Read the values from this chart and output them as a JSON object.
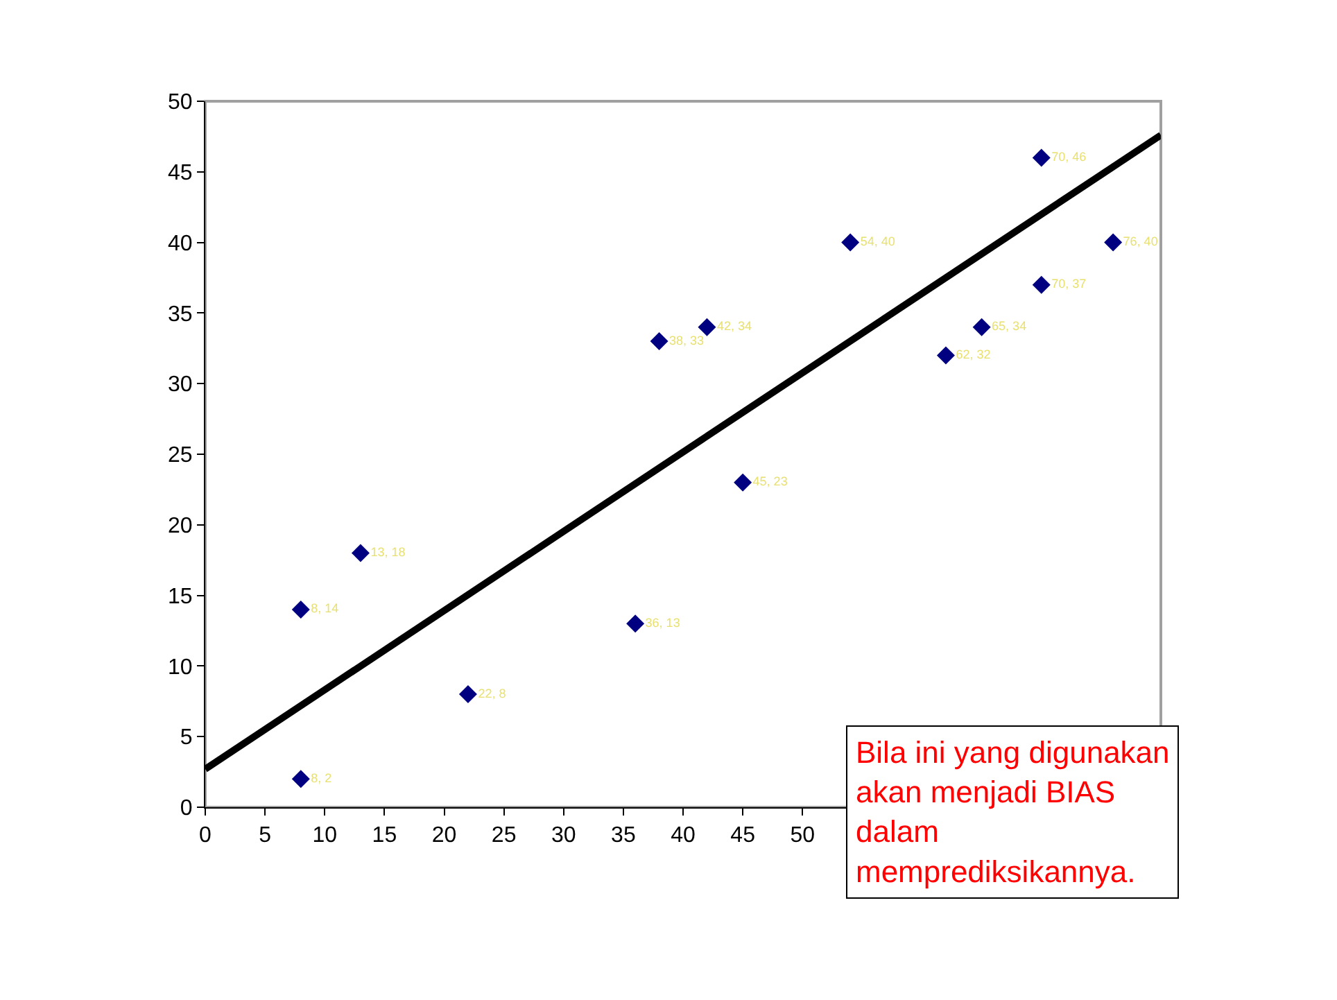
{
  "chart_data": {
    "type": "scatter",
    "xlim": [
      0,
      80
    ],
    "xticks": [
      0,
      5,
      10,
      15,
      20,
      25,
      30,
      35,
      40,
      45,
      50
    ],
    "ylim": [
      0,
      50
    ],
    "yticks": [
      0,
      5,
      10,
      15,
      20,
      25,
      30,
      35,
      40,
      45,
      50
    ],
    "grid": false,
    "legend": false,
    "marker": "diamond",
    "series": [
      {
        "color": "#000080",
        "x": [
          8,
          8,
          13,
          22,
          36,
          38,
          42,
          45,
          54,
          62,
          65,
          70,
          70,
          76
        ],
        "values": [
          2,
          14,
          18,
          8,
          13,
          33,
          34,
          23,
          40,
          32,
          34,
          46,
          37,
          40
        ],
        "value_labels": [
          "8, 2",
          "8, 14",
          "13, 18",
          "22, 8",
          "36, 13",
          "38, 33",
          "42, 34",
          "45, 23",
          "54, 40",
          "62, 32",
          "65, 34",
          "70, 46",
          "70, 37",
          "76, 40"
        ]
      },
      {
        "type": "line",
        "marker": "none",
        "color": "#000000",
        "x": [
          0,
          80
        ],
        "values": [
          2.7,
          47.6
        ]
      }
    ],
    "annotations": [
      "Bila ini yang digunakan\nakan menjadi BIAS\ndalam\nmemprediksikannya."
    ]
  }
}
